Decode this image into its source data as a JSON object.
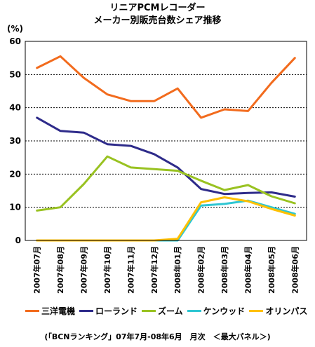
{
  "chart_data": {
    "type": "line",
    "title": "リニアPCMレコーダー",
    "subtitle": "メーカー別販売台数シェア推移",
    "ylabel": "(%)",
    "xlabel": "",
    "ylim": [
      0,
      60
    ],
    "yticks": [
      0,
      10,
      20,
      30,
      40,
      50,
      60
    ],
    "grid": "horizontal dotted",
    "legend": "bottom",
    "categories": [
      "2007年07月",
      "2007年08月",
      "2007年09月",
      "2007年10月",
      "2007年11月",
      "2007年12月",
      "2008年01月",
      "2008年02月",
      "2008年03月",
      "2008年04月",
      "2008年05月",
      "2008年06月"
    ],
    "series": [
      {
        "name": "三洋電機",
        "color": "#F26B1D",
        "values": [
          52,
          55.5,
          49,
          44,
          42,
          42,
          45.8,
          37,
          39.5,
          39,
          47.5,
          55
        ]
      },
      {
        "name": "ローランド",
        "color": "#2E2B8A",
        "values": [
          37,
          33,
          32.5,
          29,
          28.5,
          26,
          22,
          15.5,
          14,
          14.3,
          14.5,
          13.2
        ]
      },
      {
        "name": "ズーム",
        "color": "#99C221",
        "values": [
          9,
          10,
          17,
          25.3,
          22,
          21.5,
          21,
          18,
          15.2,
          16.7,
          13.3,
          11.2
        ]
      },
      {
        "name": "ケンウッド",
        "color": "#2EC6D2",
        "values": [
          0,
          0,
          0,
          0,
          0,
          0,
          0,
          10.5,
          11,
          12,
          10,
          8
        ]
      },
      {
        "name": "オリンパス",
        "color": "#FFC000",
        "values": [
          0,
          0,
          0,
          0,
          0,
          0,
          0.5,
          11.5,
          13,
          11.8,
          9.5,
          7.5
        ]
      }
    ]
  },
  "source": "(「BCNランキング」07年7月-08年6月　月次　＜最大パネル＞)"
}
